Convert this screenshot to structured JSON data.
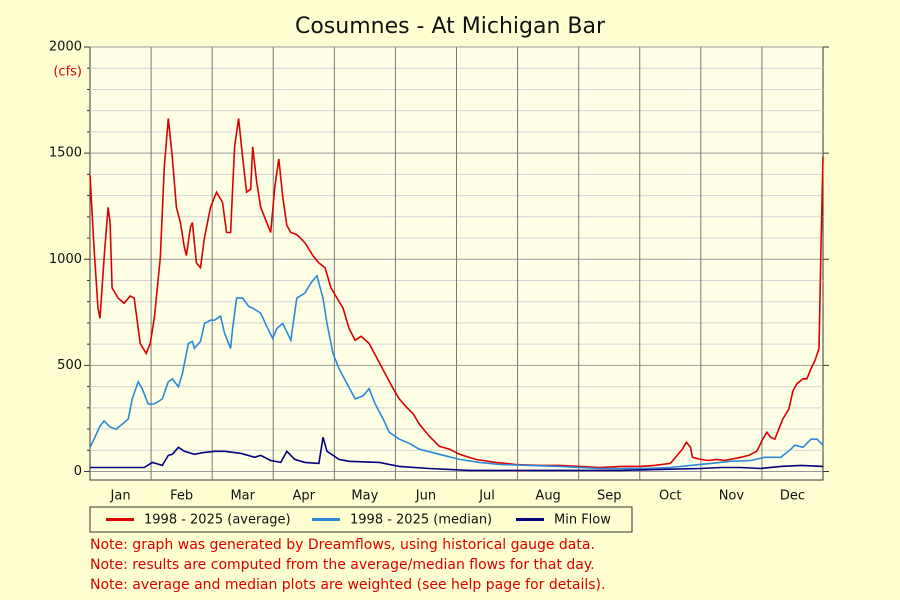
{
  "chart_data": {
    "type": "line",
    "title": "Cosumnes - At Michigan Bar",
    "y_label": "(cfs)",
    "categories": [
      "Jan",
      "Feb",
      "Mar",
      "Apr",
      "May",
      "Jun",
      "Jul",
      "Aug",
      "Sep",
      "Oct",
      "Nov",
      "Dec"
    ],
    "xlim": [
      0,
      365
    ],
    "ylim": [
      -40,
      2000
    ],
    "yticks": [
      0,
      500,
      1000,
      1500,
      2000
    ],
    "yminorticks": [
      100,
      200,
      300,
      400,
      600,
      700,
      800,
      900,
      1100,
      1200,
      1300,
      1400,
      1600,
      1700,
      1800,
      1900
    ],
    "grid": true,
    "legend": "bottom",
    "series": [
      {
        "name": "1998 - 2025 (average)",
        "color": "#dd0000",
        "x": [
          0,
          2,
          4,
          5,
          7,
          9,
          10,
          11,
          14,
          17,
          20,
          22,
          25,
          28,
          30,
          32,
          35,
          37,
          39,
          41,
          43,
          45,
          47,
          48,
          50,
          51,
          53,
          55,
          57,
          60,
          63,
          66,
          68,
          70,
          72,
          74,
          76,
          78,
          80,
          81,
          83,
          85,
          87,
          90,
          92,
          94,
          96,
          98,
          100,
          103,
          107,
          111,
          114,
          117,
          120,
          123,
          126,
          129,
          132,
          135,
          139,
          143,
          147,
          151,
          154,
          157,
          161,
          164,
          169,
          174,
          179,
          184,
          192,
          202,
          212,
          224,
          234,
          244,
          254,
          264,
          274,
          281,
          289,
          295,
          297,
          299,
          300,
          304,
          308,
          312,
          316,
          324,
          328,
          332,
          335,
          337,
          339,
          341,
          343,
          345,
          348,
          350,
          352,
          355,
          357,
          359,
          361,
          363,
          364,
          365
        ],
        "values": [
          1397,
          1055,
          770,
          722,
          1007,
          1245,
          1173,
          865,
          817,
          793,
          827,
          817,
          603,
          556,
          603,
          722,
          1007,
          1435,
          1663,
          1482,
          1245,
          1173,
          1055,
          1017,
          1150,
          1173,
          983,
          960,
          1102,
          1245,
          1316,
          1268,
          1126,
          1126,
          1530,
          1663,
          1482,
          1316,
          1330,
          1530,
          1363,
          1245,
          1197,
          1126,
          1340,
          1473,
          1292,
          1160,
          1126,
          1116,
          1078,
          1017,
          983,
          960,
          865,
          817,
          770,
          674,
          618,
          637,
          603,
          532,
          461,
          390,
          342,
          309,
          271,
          223,
          166,
          119,
          105,
          81,
          57,
          43,
          33,
          29,
          29,
          24,
          19,
          24,
          24,
          29,
          38,
          105,
          138,
          114,
          67,
          57,
          52,
          57,
          52,
          67,
          76,
          95,
          152,
          185,
          161,
          152,
          200,
          247,
          295,
          380,
          413,
          437,
          437,
          485,
          523,
          580,
          1055,
          1482
        ]
      },
      {
        "name": "1998 - 2025 (median)",
        "color": "#2a8ad8",
        "x": [
          0,
          2,
          5,
          7,
          10,
          13,
          16,
          19,
          21,
          24,
          26,
          29,
          32,
          36,
          39,
          41,
          44,
          46,
          49,
          51,
          52,
          55,
          57,
          60,
          62,
          65,
          67,
          70,
          71,
          73,
          76,
          79,
          81,
          85,
          88,
          91,
          93,
          96,
          100,
          103,
          107,
          110,
          113,
          116,
          118,
          121,
          124,
          128,
          132,
          136,
          139,
          142,
          146,
          149,
          154,
          159,
          164,
          174,
          184,
          194,
          204,
          219,
          234,
          254,
          274,
          289,
          299,
          309,
          319,
          329,
          336,
          344,
          349,
          351,
          355,
          359,
          362,
          365
        ],
        "values": [
          114,
          152,
          214,
          238,
          209,
          200,
          223,
          247,
          342,
          423,
          390,
          318,
          318,
          342,
          423,
          437,
          399,
          461,
          603,
          613,
          580,
          613,
          698,
          713,
          713,
          732,
          651,
          580,
          674,
          817,
          817,
          779,
          770,
          746,
          684,
          627,
          674,
          698,
          618,
          817,
          841,
          888,
          922,
          817,
          698,
          556,
          485,
          413,
          342,
          356,
          390,
          318,
          247,
          185,
          152,
          133,
          105,
          81,
          57,
          43,
          33,
          29,
          24,
          14,
          14,
          19,
          29,
          38,
          48,
          52,
          67,
          67,
          105,
          124,
          114,
          152,
          152,
          124
        ]
      },
      {
        "name": "Min Flow",
        "color": "#000080",
        "x": [
          0,
          20,
          27,
          31,
          36,
          39,
          41,
          44,
          47,
          52,
          57,
          62,
          67,
          75,
          82,
          85,
          90,
          95,
          98,
          102,
          107,
          114,
          116,
          118,
          124,
          129,
          144,
          154,
          169,
          189,
          214,
          234,
          264,
          284,
          304,
          314,
          324,
          334,
          344,
          354,
          365
        ],
        "values": [
          19,
          19,
          19,
          43,
          29,
          76,
          81,
          114,
          95,
          81,
          90,
          95,
          95,
          86,
          67,
          76,
          52,
          43,
          95,
          57,
          43,
          38,
          161,
          95,
          57,
          48,
          43,
          24,
          14,
          5,
          5,
          5,
          5,
          10,
          14,
          19,
          19,
          14,
          24,
          29,
          24
        ]
      }
    ]
  },
  "notes": [
    "Note: graph was generated by Dreamflows, using historical gauge data.",
    "Note: results are computed from the average/median flows for that day.",
    "Note: average and median plots are weighted (see help page for details)."
  ]
}
